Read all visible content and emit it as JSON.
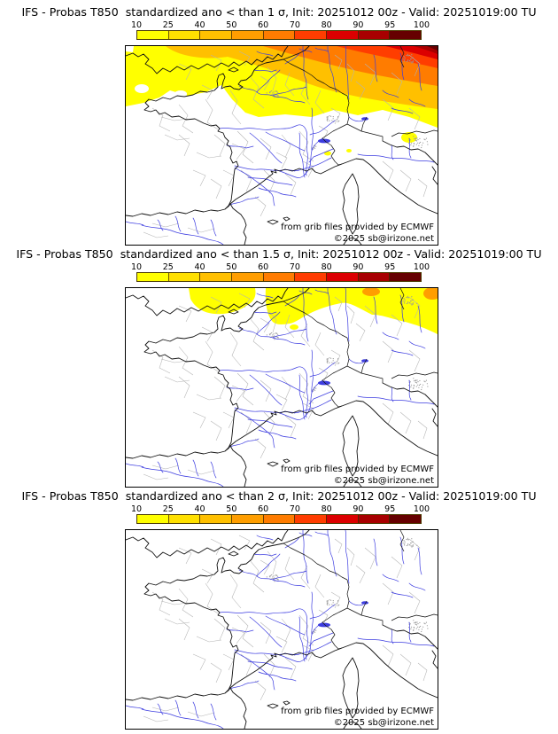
{
  "page": {
    "background": "#ffffff"
  },
  "colorbar": {
    "ticks": [
      "10",
      "25",
      "40",
      "50",
      "60",
      "70",
      "80",
      "90",
      "95",
      "100"
    ],
    "segment_colors": [
      "#FFFF00",
      "#FFE000",
      "#FFC000",
      "#FF9E00",
      "#FF7C00",
      "#FF3D00",
      "#DC0000",
      "#A80000",
      "#660000"
    ]
  },
  "attribution": {
    "line1": "from grib files provided by ECMWF",
    "line2": "©2025 sb@irizone.net"
  },
  "map_style": {
    "river_color": "#3d3de0",
    "coast_color": "#111111",
    "admin_border_color": "#b3b3b3",
    "sea_land_background": "#ffffff"
  },
  "panels": [
    {
      "title": "IFS - Probas T850  standardized ano < than 1 σ, Init: 20251012 00z - Valid: 20251019:00 TU"
    },
    {
      "title": "IFS - Probas T850  standardized ano < than 1.5 σ, Init: 20251012 00z - Valid: 20251019:00 TU"
    },
    {
      "title": "IFS - Probas T850  standardized ano < than 2 σ, Init: 20251012 00z - Valid: 20251019:00 TU"
    }
  ]
}
